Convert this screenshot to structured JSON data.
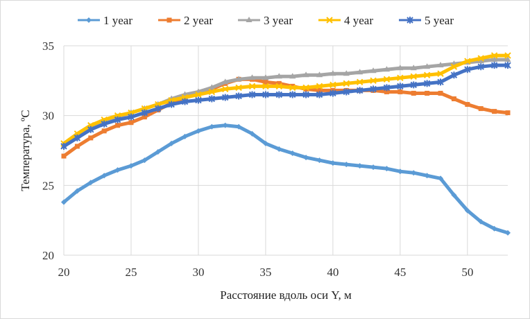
{
  "chart_data": {
    "type": "line",
    "title": "",
    "xlabel": "Расстояние вдоль оси Y, м",
    "ylabel": "Температура, ºС",
    "xlim": [
      20,
      53
    ],
    "ylim": [
      20,
      35
    ],
    "xticks": [
      20,
      25,
      30,
      35,
      40,
      45,
      50
    ],
    "yticks": [
      20,
      25,
      30,
      35
    ],
    "grid": true,
    "legend": "top",
    "x": [
      20,
      21,
      22,
      23,
      24,
      25,
      26,
      27,
      28,
      29,
      30,
      31,
      32,
      33,
      34,
      35,
      36,
      37,
      38,
      39,
      40,
      41,
      42,
      43,
      44,
      45,
      46,
      47,
      48,
      49,
      50,
      51,
      52,
      53
    ],
    "series": [
      {
        "name": "1 year",
        "color": "#5b9bd5",
        "marker": "diamond",
        "values": [
          23.8,
          24.6,
          25.2,
          25.7,
          26.1,
          26.4,
          26.8,
          27.4,
          28.0,
          28.5,
          28.9,
          29.2,
          29.3,
          29.2,
          28.7,
          28.0,
          27.6,
          27.3,
          27.0,
          26.8,
          26.6,
          26.5,
          26.4,
          26.3,
          26.2,
          26.0,
          25.9,
          25.7,
          25.5,
          24.3,
          23.2,
          22.4,
          21.9,
          21.6
        ]
      },
      {
        "name": "2 year",
        "color": "#ed7d31",
        "marker": "square",
        "values": [
          27.1,
          27.8,
          28.4,
          28.9,
          29.3,
          29.5,
          29.9,
          30.4,
          30.9,
          31.3,
          31.6,
          31.9,
          32.3,
          32.6,
          32.6,
          32.4,
          32.3,
          32.1,
          31.9,
          31.8,
          31.8,
          31.8,
          31.8,
          31.8,
          31.7,
          31.7,
          31.6,
          31.6,
          31.6,
          31.2,
          30.8,
          30.5,
          30.3,
          30.2
        ]
      },
      {
        "name": "3 year",
        "color": "#a5a5a5",
        "marker": "triangle",
        "values": [
          27.8,
          28.5,
          29.1,
          29.6,
          29.9,
          30.2,
          30.5,
          30.8,
          31.2,
          31.5,
          31.7,
          32.0,
          32.4,
          32.6,
          32.7,
          32.7,
          32.8,
          32.8,
          32.9,
          32.9,
          33.0,
          33.0,
          33.1,
          33.2,
          33.3,
          33.4,
          33.4,
          33.5,
          33.6,
          33.7,
          33.8,
          33.9,
          34.0,
          34.0
        ]
      },
      {
        "name": "4 year",
        "color": "#ffc000",
        "marker": "x",
        "values": [
          28.0,
          28.7,
          29.3,
          29.7,
          30.0,
          30.2,
          30.5,
          30.8,
          31.1,
          31.3,
          31.5,
          31.7,
          31.9,
          32.0,
          32.1,
          32.1,
          32.1,
          32.0,
          32.0,
          32.1,
          32.2,
          32.3,
          32.4,
          32.5,
          32.6,
          32.7,
          32.8,
          32.9,
          33.0,
          33.5,
          33.9,
          34.1,
          34.3,
          34.3
        ]
      },
      {
        "name": "5 year",
        "color": "#4472c4",
        "marker": "star",
        "values": [
          27.8,
          28.4,
          29.0,
          29.4,
          29.7,
          29.9,
          30.2,
          30.5,
          30.8,
          31.0,
          31.1,
          31.2,
          31.3,
          31.4,
          31.5,
          31.5,
          31.5,
          31.5,
          31.5,
          31.5,
          31.6,
          31.7,
          31.8,
          31.9,
          32.0,
          32.1,
          32.2,
          32.3,
          32.4,
          32.9,
          33.3,
          33.5,
          33.6,
          33.6
        ]
      }
    ]
  }
}
